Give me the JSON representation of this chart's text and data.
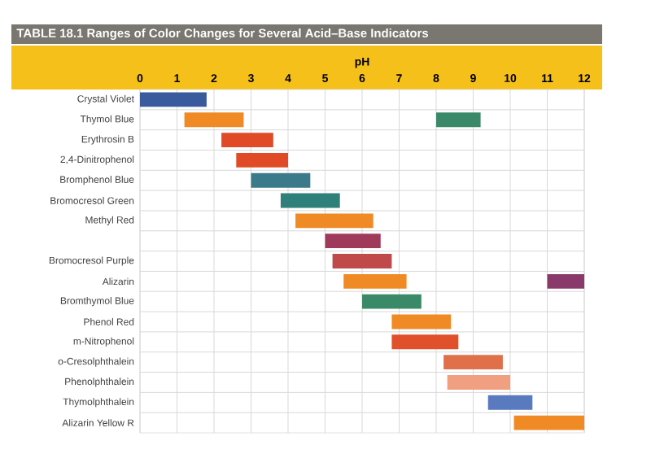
{
  "chart_data": {
    "type": "bar",
    "orientation": "horizontal",
    "title": "TABLE 18.1 Ranges of Color Changes for Several Acid–Base Indicators",
    "xlabel": "pH",
    "categories": [
      "Crystal Violet",
      "Thymol Blue",
      "Erythrosin B",
      "2,4-Dinitrophenol",
      "Bromphenol Blue",
      "Bromocresol Green",
      "Methyl Red",
      null,
      "Bromocresol Purple",
      "Alizarin",
      "Bromthymol Blue",
      "Phenol Red",
      "m-Nitrophenol",
      "o-Cresolphthalein",
      "Phenolphthalein",
      "Thymolphthalein",
      "Alizarin Yellow R"
    ],
    "series": [
      {
        "base": [
          0.0,
          1.2,
          2.2,
          2.6,
          3.0,
          3.8,
          4.2,
          5.0,
          5.2,
          5.5,
          6.0,
          6.8,
          6.8,
          8.2,
          8.3,
          9.4,
          10.1
        ],
        "values": [
          1.8,
          1.6,
          1.4,
          1.4,
          1.6,
          1.6,
          2.1,
          1.5,
          1.6,
          1.7,
          1.6,
          1.6,
          1.8,
          1.6,
          1.7,
          1.2,
          1.9
        ],
        "colors": [
          "#3a5a9e",
          "#f08a24",
          "#e04a26",
          "#e04a26",
          "#3a7a8a",
          "#2f7f7a",
          "#f08a24",
          "#a03a5a",
          "#c04a4a",
          "#f08a24",
          "#3a8a6a",
          "#f08a24",
          "#e0502a",
          "#e0704a",
          "#f0a080",
          "#5a7ac0",
          "#f08a24"
        ]
      },
      {
        "base": [
          null,
          8.0,
          null,
          null,
          null,
          null,
          null,
          null,
          null,
          11.0,
          null,
          null,
          null,
          null,
          null,
          null,
          null
        ],
        "values": [
          null,
          1.2,
          null,
          null,
          null,
          null,
          null,
          null,
          null,
          1.0,
          null,
          null,
          null,
          null,
          null,
          null,
          null
        ],
        "colors": [
          null,
          "#3a8a6a",
          null,
          null,
          null,
          null,
          null,
          null,
          null,
          "#8a3a6a",
          null,
          null,
          null,
          null,
          null,
          null,
          null
        ]
      }
    ],
    "xlim": [
      0,
      12
    ],
    "xticks": [
      0,
      1,
      2,
      3,
      4,
      5,
      6,
      7,
      8,
      9,
      10,
      11,
      12
    ],
    "grid": true
  }
}
